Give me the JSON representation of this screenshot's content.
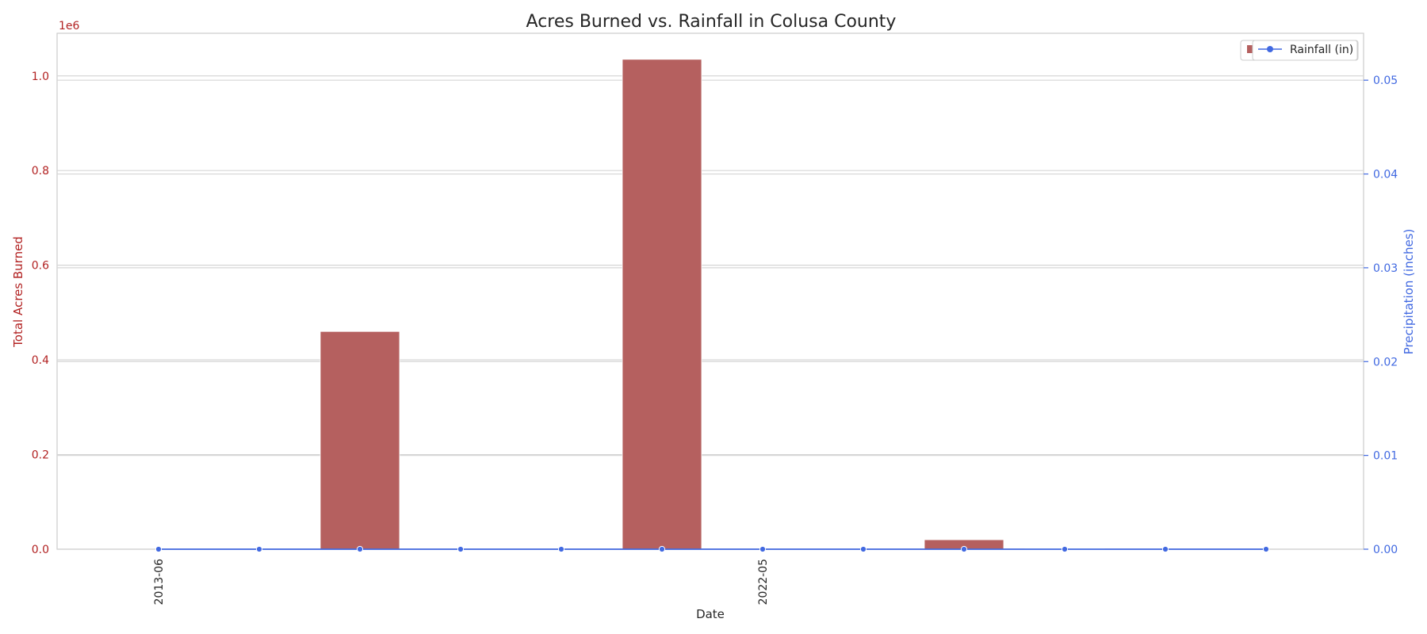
{
  "chart_data": {
    "type": "bar+line",
    "title": "Acres Burned vs. Rainfall in Colusa County",
    "xlabel": "Date",
    "ylabel_left": "Total Acres Burned",
    "ylabel_right": "Precipitation (inches)",
    "left_axis_multiplier": "1e6",
    "x_tick_labels": [
      "2013-06",
      "2022-05"
    ],
    "x_tick_label_indices": [
      0,
      6
    ],
    "left_ticks": [
      "0.0",
      "0.2",
      "0.4",
      "0.6",
      "0.8",
      "1.0"
    ],
    "right_ticks": [
      "0.00",
      "0.01",
      "0.02",
      "0.03",
      "0.04",
      "0.05"
    ],
    "ylim_left": [
      0,
      1.09
    ],
    "ylim_right": [
      0,
      0.055
    ],
    "bar_series": {
      "values": [
        0,
        0,
        0.46,
        0,
        0,
        1.035,
        0,
        0,
        0.02,
        0.001,
        0,
        0
      ],
      "color": "#b5605f"
    },
    "line_series": {
      "name": "Rainfall (in)",
      "values": [
        0,
        0,
        0,
        0,
        0,
        0,
        0,
        0,
        0,
        0,
        0,
        0
      ],
      "color": "#4169e1"
    },
    "legend_position": "top-right",
    "grid": true
  }
}
